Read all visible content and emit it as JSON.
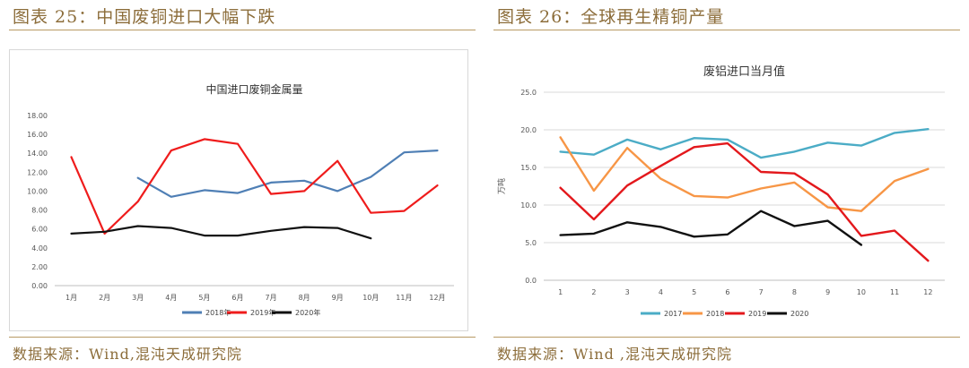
{
  "left": {
    "figure_title": "图表 25：中国废铜进口大幅下跌",
    "source": "数据来源：Wind,混沌天成研究院"
  },
  "right": {
    "figure_title": "图表 26：全球再生精铜产量",
    "source": "数据来源：Wind ,混沌天成研究院"
  },
  "chart_data": [
    {
      "type": "line",
      "title": "中国进口废铜金属量",
      "xlabel": "",
      "ylabel": "",
      "categories": [
        "1月",
        "2月",
        "3月",
        "4月",
        "5月",
        "6月",
        "7月",
        "8月",
        "9月",
        "10月",
        "11月",
        "12月"
      ],
      "ylim": [
        0,
        18
      ],
      "yticks": [
        "0.00",
        "2.00",
        "4.00",
        "6.00",
        "8.00",
        "10.00",
        "12.00",
        "14.00",
        "16.00",
        "18.00"
      ],
      "grid": false,
      "legend_position": "bottom",
      "series": [
        {
          "name": "2018年",
          "color": "#4f7fb5",
          "values": [
            null,
            null,
            11.4,
            9.4,
            10.1,
            9.8,
            10.9,
            11.1,
            10.0,
            11.5,
            14.1,
            14.3
          ]
        },
        {
          "name": "2019年",
          "color": "#ef1c1c",
          "values": [
            13.6,
            5.5,
            8.9,
            14.3,
            15.5,
            15.0,
            9.7,
            10.0,
            13.2,
            7.7,
            7.9,
            10.6
          ]
        },
        {
          "name": "2020年",
          "color": "#111111",
          "values": [
            5.5,
            5.7,
            6.3,
            6.1,
            5.3,
            5.3,
            5.8,
            6.2,
            6.1,
            5.0,
            null,
            null
          ]
        }
      ]
    },
    {
      "type": "line",
      "title": "废铝进口当月值",
      "xlabel": "",
      "ylabel": "万吨",
      "categories": [
        "1",
        "2",
        "3",
        "4",
        "5",
        "6",
        "7",
        "8",
        "9",
        "10",
        "11",
        "12"
      ],
      "ylim": [
        0,
        25
      ],
      "yticks": [
        "0.0",
        "5.0",
        "10.0",
        "15.0",
        "20.0",
        "25.0"
      ],
      "grid": true,
      "legend_position": "bottom",
      "series": [
        {
          "name": "2017",
          "color": "#4bacc6",
          "values": [
            17.1,
            16.7,
            18.7,
            17.4,
            18.9,
            18.7,
            16.3,
            17.1,
            18.3,
            17.9,
            19.6,
            20.1
          ]
        },
        {
          "name": "2018",
          "color": "#f79646",
          "values": [
            19.0,
            11.9,
            17.6,
            13.5,
            11.2,
            11.0,
            12.2,
            13.0,
            9.7,
            9.2,
            13.2,
            14.8
          ]
        },
        {
          "name": "2019",
          "color": "#e3181c",
          "values": [
            12.3,
            8.1,
            12.6,
            15.2,
            17.7,
            18.2,
            14.4,
            14.2,
            11.4,
            5.9,
            6.6,
            2.6
          ]
        },
        {
          "name": "2020",
          "color": "#111111",
          "values": [
            6.0,
            6.2,
            7.7,
            7.1,
            5.8,
            6.1,
            9.2,
            7.2,
            7.9,
            4.7,
            null,
            null
          ]
        }
      ]
    }
  ]
}
